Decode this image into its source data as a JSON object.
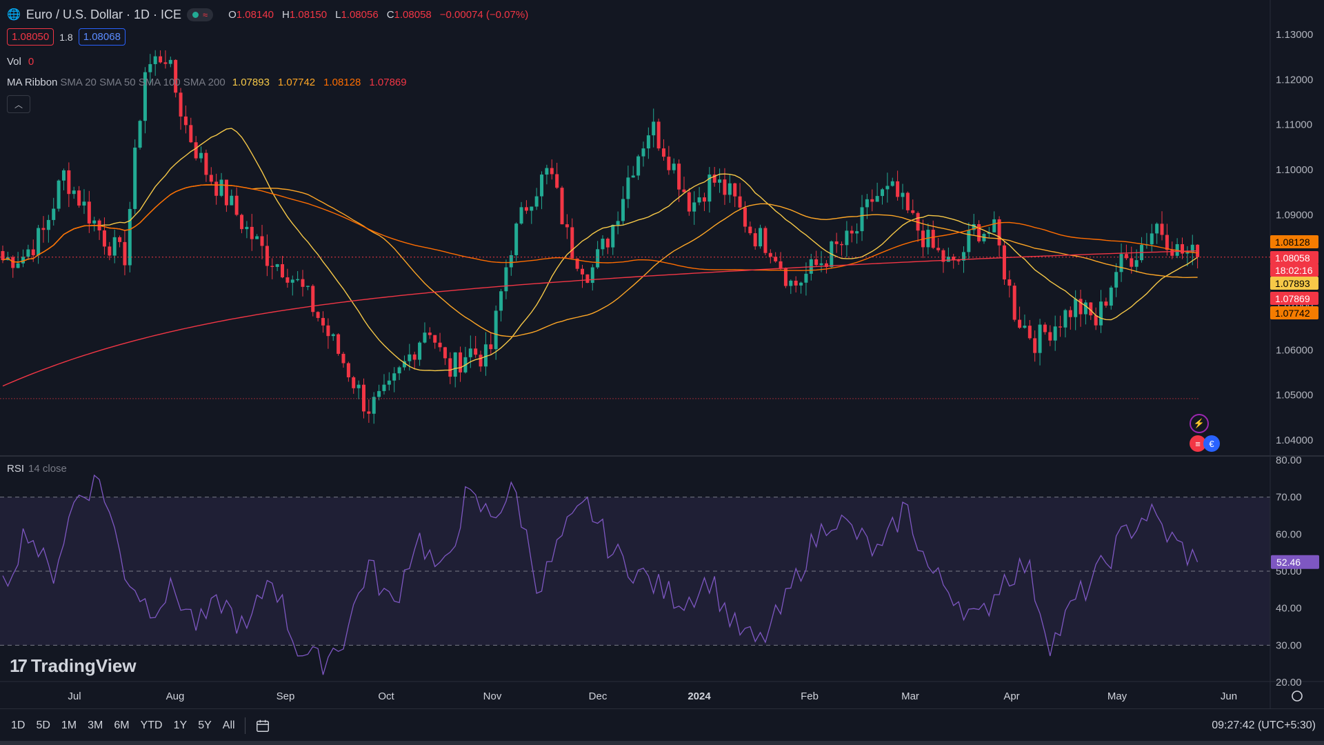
{
  "header": {
    "symbol_title": "Euro / U.S. Dollar · 1D · ICE",
    "ohlc": [
      {
        "k": "O",
        "v": "1.08140"
      },
      {
        "k": "H",
        "v": "1.08150"
      },
      {
        "k": "L",
        "v": "1.08056"
      },
      {
        "k": "C",
        "v": "1.08058"
      }
    ],
    "change": "−0.00074 (−0.07%)",
    "sell_price": "1.08050",
    "spread": "1.8",
    "buy_price": "1.08068"
  },
  "legends": {
    "vol_label": "Vol",
    "vol_value": "0",
    "ma_label": "MA Ribbon",
    "ma_args": "SMA 20 SMA 50 SMA 100 SMA 200",
    "ma_values": [
      "1.07893",
      "1.07742",
      "1.08128",
      "1.07869"
    ],
    "ma_colors": [
      "#f7c948",
      "#ffa726",
      "#ff6d00",
      "#f23645"
    ],
    "rsi_label": "RSI",
    "rsi_args": "14 close"
  },
  "price_axis": {
    "ticks": [
      "1.13000",
      "1.12000",
      "1.11000",
      "1.10000",
      "1.09000",
      "1.08000",
      "1.07000",
      "1.06000",
      "1.05000",
      "1.04000"
    ],
    "labels": [
      {
        "text": "1.08128",
        "bg": "#f57c00",
        "color": "#000000"
      },
      {
        "text": "1.08058",
        "bg": "#f23645",
        "color": "#ffffff"
      },
      {
        "text": "18:02:16",
        "bg": "#f23645",
        "color": "#ffffff"
      },
      {
        "text": "1.07893",
        "bg": "#f7c948",
        "color": "#000000"
      },
      {
        "text": "1.07869",
        "bg": "#f23645",
        "color": "#ffffff"
      },
      {
        "text": "1.07742",
        "bg": "#f57c00",
        "color": "#000000"
      }
    ]
  },
  "rsi_axis": {
    "ticks": [
      "80.00",
      "70.00",
      "60.00",
      "50.00",
      "40.00",
      "30.00",
      "20.00"
    ],
    "current": "52.46"
  },
  "time_axis": [
    "Jul",
    "Aug",
    "Sep",
    "Oct",
    "Nov",
    "Dec",
    "2024",
    "Feb",
    "Mar",
    "Apr",
    "May",
    "Jun"
  ],
  "bottom": {
    "ranges": [
      "1D",
      "5D",
      "1M",
      "3M",
      "6M",
      "YTD",
      "1Y",
      "5Y",
      "All"
    ],
    "clock": "09:27:42 (UTC+5:30)"
  },
  "branding": {
    "logo_mark": "17",
    "logo_text": "TradingView"
  },
  "colors": {
    "up": "#22ab94",
    "down": "#f23645",
    "rsi": "#7e57c2"
  },
  "chart_data": {
    "type": "candlestick",
    "range_y": [
      1.04,
      1.13
    ],
    "anchors": [
      1.08,
      1.081,
      1.086,
      1.099,
      1.092,
      1.085,
      1.08,
      1.122,
      1.126,
      1.11,
      1.1,
      1.094,
      1.087,
      1.081,
      1.078,
      1.072,
      1.064,
      1.056,
      1.047,
      1.05,
      1.058,
      1.066,
      1.055,
      1.06,
      1.058,
      1.082,
      1.094,
      1.1,
      1.083,
      1.077,
      1.086,
      1.1,
      1.11,
      1.102,
      1.092,
      1.098,
      1.094,
      1.086,
      1.083,
      1.074,
      1.078,
      1.082,
      1.085,
      1.094,
      1.095,
      1.088,
      1.082,
      1.078,
      1.087,
      1.086,
      1.068,
      1.062,
      1.066,
      1.07,
      1.066,
      1.078,
      1.082,
      1.088,
      1.082,
      1.0806
    ],
    "rsi_anchors": [
      45,
      62,
      48,
      70,
      75,
      50,
      40,
      45,
      35,
      42,
      33,
      50,
      30,
      25,
      32,
      52,
      40,
      60,
      48,
      70,
      65,
      72,
      45,
      60,
      68,
      55,
      50,
      45,
      42,
      48,
      35,
      30,
      40,
      55,
      65,
      60,
      54,
      68,
      50,
      44,
      36,
      48,
      52,
      30,
      42,
      50,
      60,
      66,
      58,
      52.5
    ]
  }
}
